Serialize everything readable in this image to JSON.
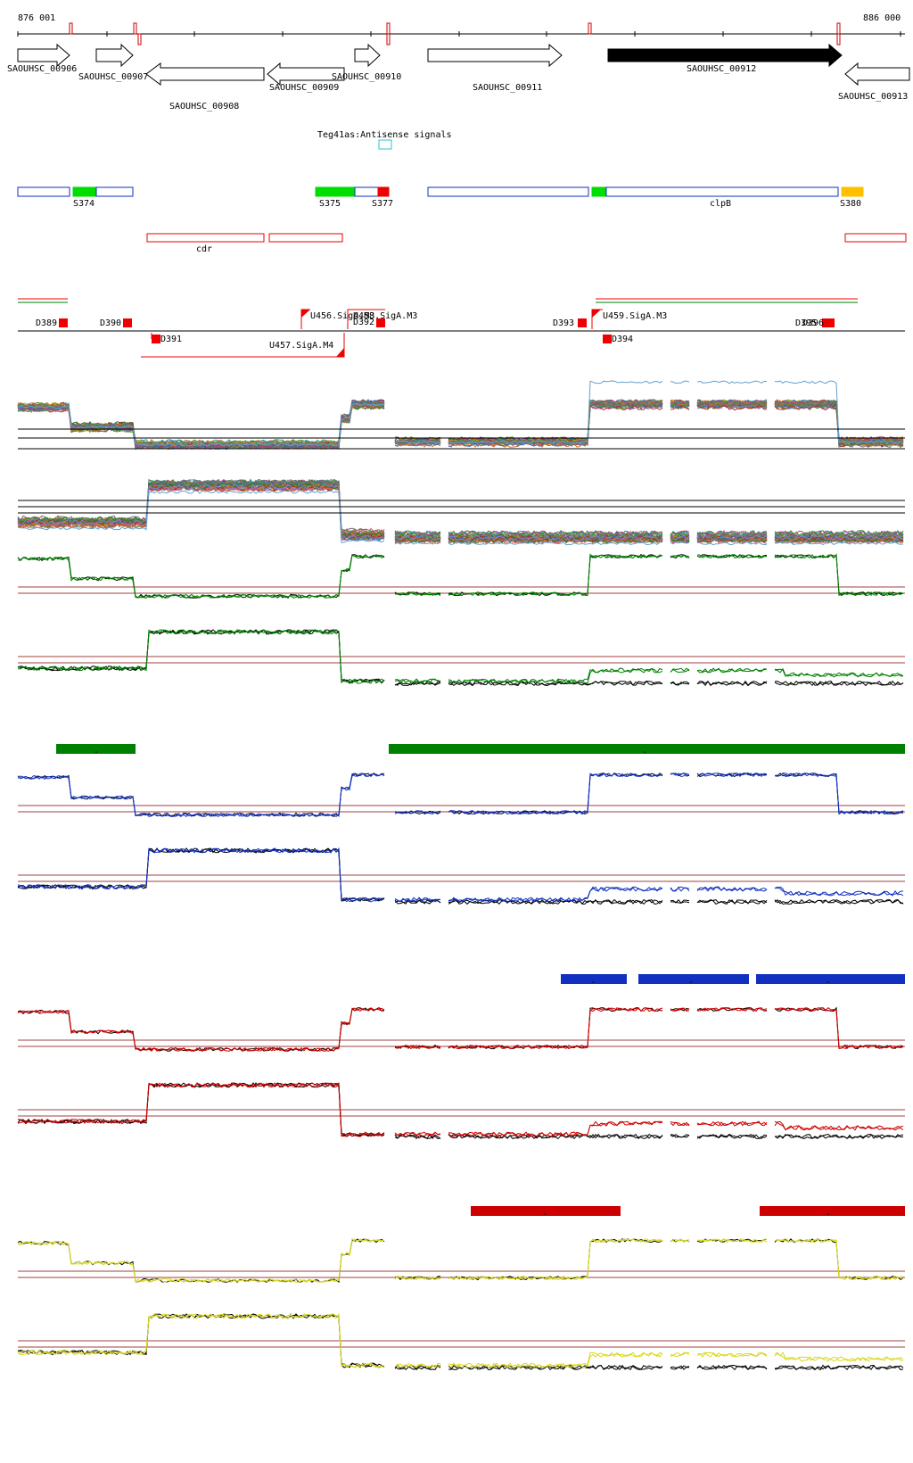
{
  "ruler": {
    "start_label": "876 001",
    "end_label": "886 000"
  },
  "genes": [
    {
      "label": "SAOUHSC_00906",
      "strand": "+"
    },
    {
      "label": "SAOUHSC_00907",
      "strand": "+"
    },
    {
      "label": "SAOUHSC_00908",
      "strand": "-"
    },
    {
      "label": "SAOUHSC_00909",
      "strand": "-"
    },
    {
      "label": "SAOUHSC_00910",
      "strand": "+"
    },
    {
      "label": "SAOUHSC_00911",
      "strand": "+"
    },
    {
      "label": "SAOUHSC_00912",
      "strand": "+",
      "highlight": true
    },
    {
      "label": "SAOUHSC_00913",
      "strand": "-"
    }
  ],
  "antisense": {
    "label": "Teg41as:Antisense signals"
  },
  "segments": [
    {
      "label": "S374"
    },
    {
      "label": "S375"
    },
    {
      "label": "S377"
    },
    {
      "label": "clpB"
    },
    {
      "label": "S380"
    }
  ],
  "cdr_label": "cdr",
  "elements": [
    {
      "label": "D389"
    },
    {
      "label": "D390"
    },
    {
      "label": "D391"
    },
    {
      "label": "U456.SigA.M3"
    },
    {
      "label": "U458.SigA.M3"
    },
    {
      "label": "D392"
    },
    {
      "label": "U457.SigA.M4"
    },
    {
      "label": "D393"
    },
    {
      "label": "U459.SigA.M3"
    },
    {
      "label": "D394"
    },
    {
      "label": "D395"
    },
    {
      "label": "D396"
    }
  ],
  "sections": [
    {
      "name": "green",
      "color": "#008000",
      "bar_minus_labels": [
        "-",
        "-"
      ]
    },
    {
      "name": "blue",
      "color": "#1030c0",
      "bar_minus_labels": [
        "-",
        "-",
        "-"
      ]
    },
    {
      "name": "red",
      "color": "#cc0000",
      "bar_minus_labels": [
        "-",
        "-"
      ]
    },
    {
      "name": "yellow",
      "color": "#d8d820",
      "bar_minus_labels": [
        "-"
      ]
    }
  ]
}
